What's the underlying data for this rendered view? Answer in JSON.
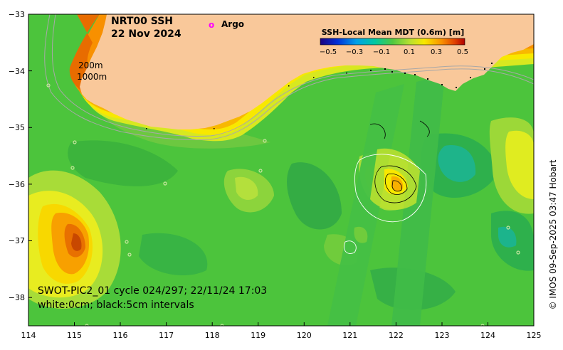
{
  "map": {
    "title_line1": "NRT00 SSH",
    "title_line2": "22 Nov 2024",
    "legend_marker": "o",
    "legend_label": "Argo",
    "legend_marker_color": "#ff00ff",
    "colorbar_title": "SSH-Local Mean MDT (0.6m) [m]",
    "colorbar_ticks": [
      "−0.5",
      "−0.3",
      "−0.1",
      "0.1",
      "0.3",
      "0.5"
    ],
    "isobath_labels": [
      "200m",
      "1000m"
    ],
    "swath_line1": "SWOT-PIC2_01 cycle 024/297; 22/11/24 17:03",
    "swath_line2": "white:0cm; black:5cm intervals",
    "credit": "© IMOS 09-Sep-2025 03:47 Hobart",
    "x_ticks": [
      "114",
      "115",
      "116",
      "117",
      "118",
      "119",
      "120",
      "121",
      "122",
      "123",
      "124",
      "125"
    ],
    "y_ticks": [
      "−33",
      "−34",
      "−35",
      "−36",
      "−37",
      "−38"
    ],
    "land_color": "#f9c89a",
    "ocean_base_color": "#4cc43c"
  }
}
